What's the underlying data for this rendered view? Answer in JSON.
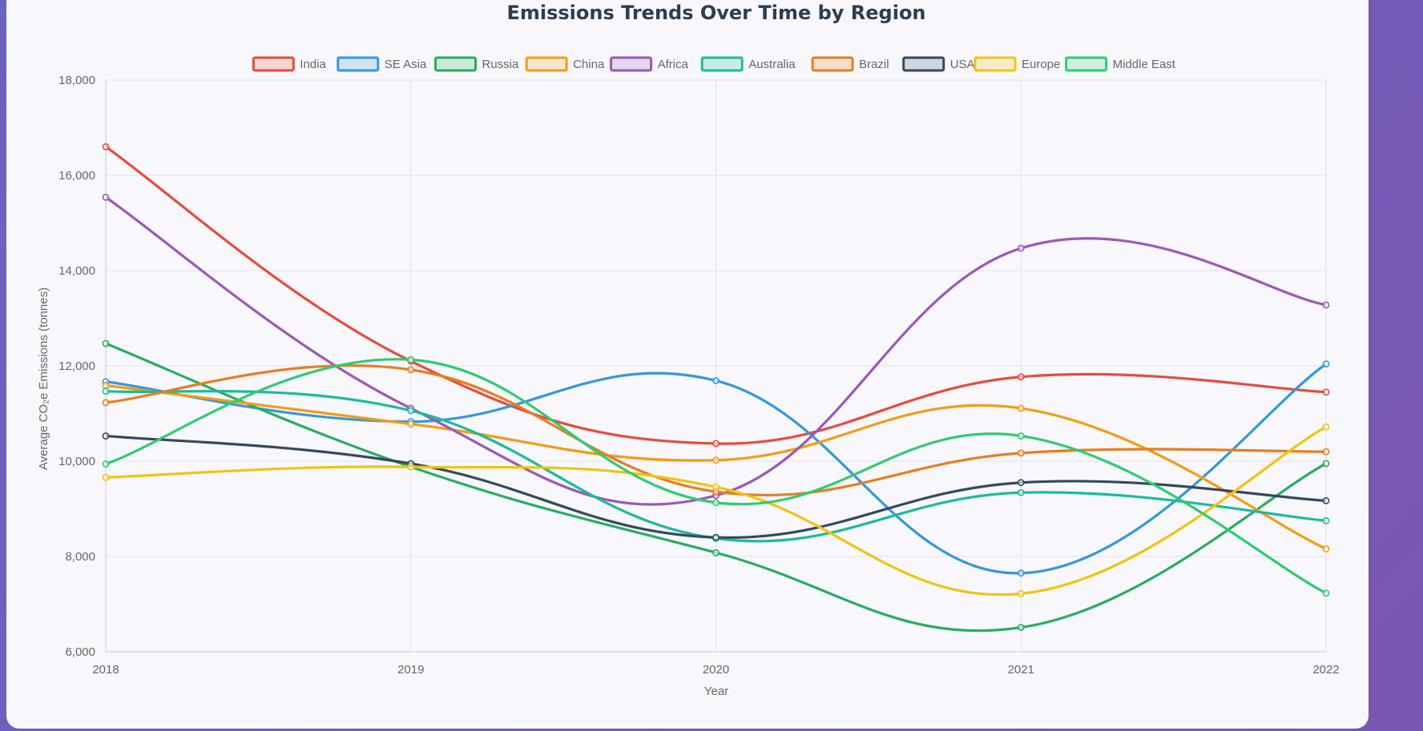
{
  "chart_data": {
    "type": "line",
    "title": "Emissions Trends Over Time by Region",
    "xlabel": "Year",
    "ylabel": "Average CO₂e Emissions (tonnes)",
    "x": [
      "2018",
      "2019",
      "2020",
      "2021",
      "2022"
    ],
    "ylim": [
      6000,
      18000
    ],
    "yticks": [
      "6,000",
      "8,000",
      "10,000",
      "12,000",
      "14,000",
      "16,000",
      "18,000"
    ],
    "grid": true,
    "legend_position": "top",
    "series": [
      {
        "name": "India",
        "color": "#e74c3c",
        "values": [
          16600,
          12100,
          10370,
          11770,
          11450
        ]
      },
      {
        "name": "SE Asia",
        "color": "#3498db",
        "values": [
          11670,
          10830,
          11690,
          7650,
          12040
        ]
      },
      {
        "name": "Russia",
        "color": "#27ae60",
        "values": [
          12470,
          9880,
          8080,
          6510,
          9950
        ]
      },
      {
        "name": "China",
        "color": "#f39c12",
        "values": [
          11590,
          10780,
          10020,
          11110,
          8160
        ]
      },
      {
        "name": "Africa",
        "color": "#9b59b6",
        "values": [
          15540,
          11110,
          9280,
          14470,
          13280
        ]
      },
      {
        "name": "Australia",
        "color": "#1abc9c",
        "values": [
          11470,
          11060,
          8380,
          9340,
          8750
        ]
      },
      {
        "name": "Brazil",
        "color": "#e67e22",
        "values": [
          11230,
          11920,
          9360,
          10170,
          10200
        ]
      },
      {
        "name": "USA",
        "color": "#34495e",
        "values": [
          10530,
          9950,
          8400,
          9550,
          9170
        ]
      },
      {
        "name": "Europe",
        "color": "#f1c40f",
        "values": [
          9660,
          9880,
          9460,
          7220,
          10720
        ]
      },
      {
        "name": "Middle East",
        "color": "#2ecc71",
        "values": [
          9940,
          12130,
          9130,
          10530,
          7230
        ]
      }
    ]
  }
}
